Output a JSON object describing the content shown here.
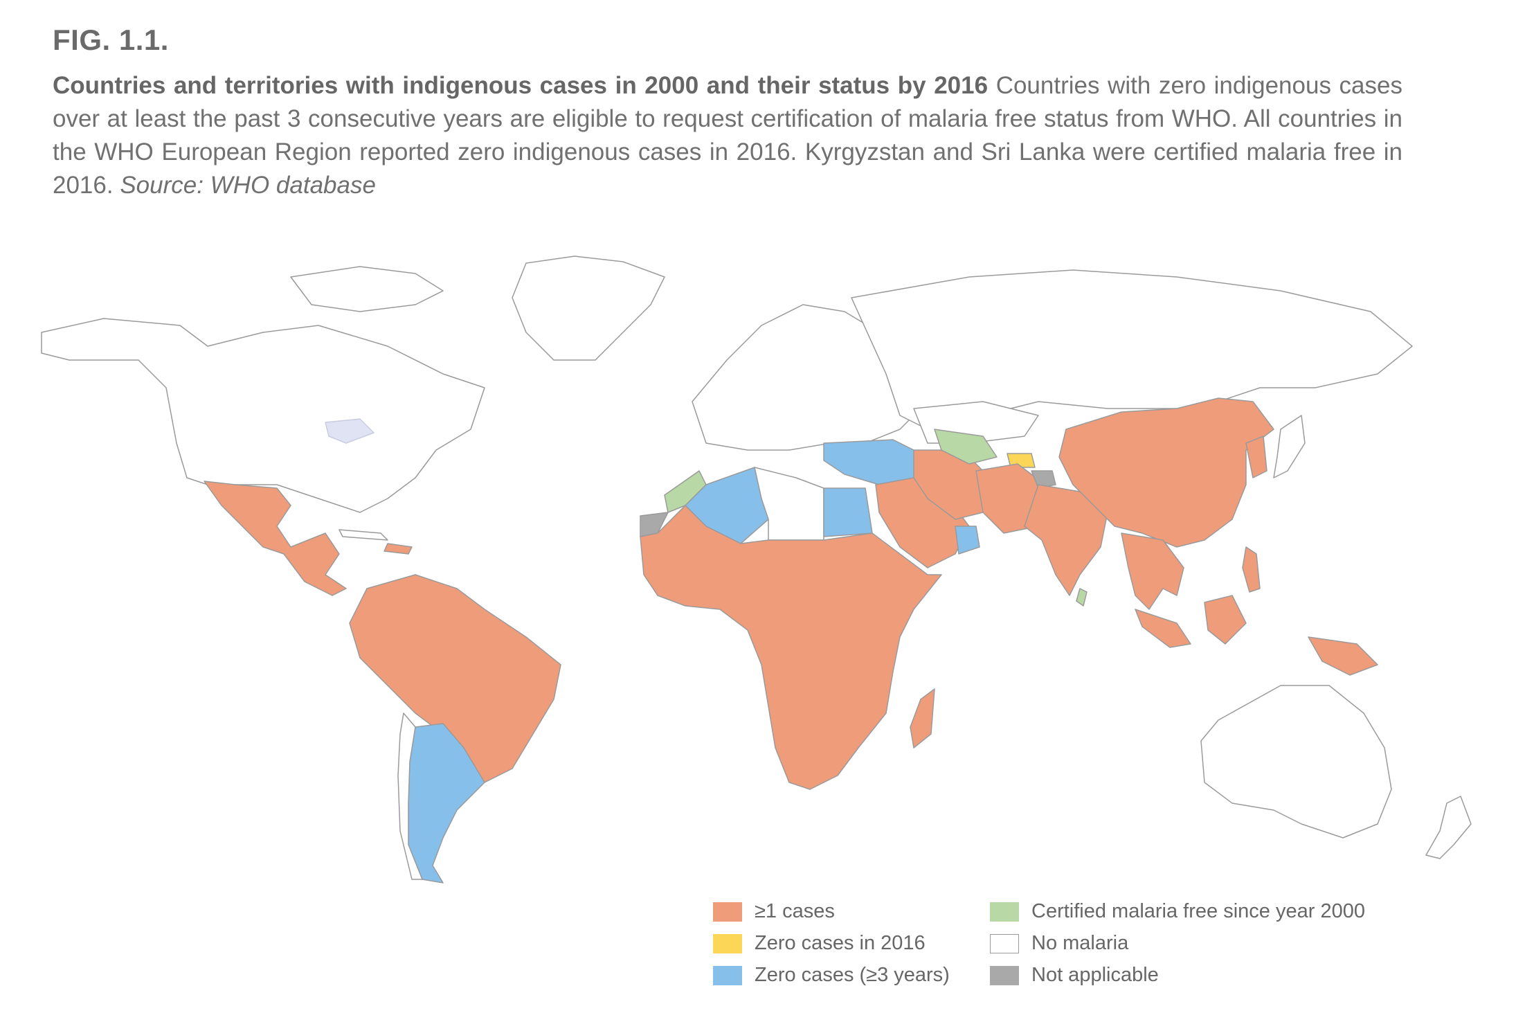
{
  "figure": {
    "label": "FIG. 1.1.",
    "title_bold": "Countries and territories with indigenous cases in 2000 and their status by 2016",
    "description": " Countries with zero indigenous cases over at least the past 3 consecutive years are eligible to request certification of malaria free status from WHO. All countries in the WHO European Region reported zero indigenous cases in 2016. Kyrgyzstan and Sri Lanka were certified malaria free in 2016. ",
    "source": "Source: WHO database"
  },
  "colors": {
    "cases": "#ef9c7b",
    "zero_2016": "#fcd757",
    "zero_3yrs": "#86c0ea",
    "certified": "#b8d9a5",
    "no_malaria": "#ffffff",
    "not_applicable": "#a9a9a9",
    "outline": "#9a9a9a",
    "lakes": "#dfe3f3"
  },
  "legend": [
    {
      "label": "≥1 cases",
      "color_key": "cases"
    },
    {
      "label": "Zero cases in 2016",
      "color_key": "zero_2016"
    },
    {
      "label": "Zero cases (≥3 years)",
      "color_key": "zero_3yrs"
    },
    {
      "label": "Certified malaria free since year 2000",
      "color_key": "certified"
    },
    {
      "label": "No malaria",
      "color_key": "no_malaria"
    },
    {
      "label": "Not applicable",
      "color_key": "not_applicable"
    }
  ]
}
